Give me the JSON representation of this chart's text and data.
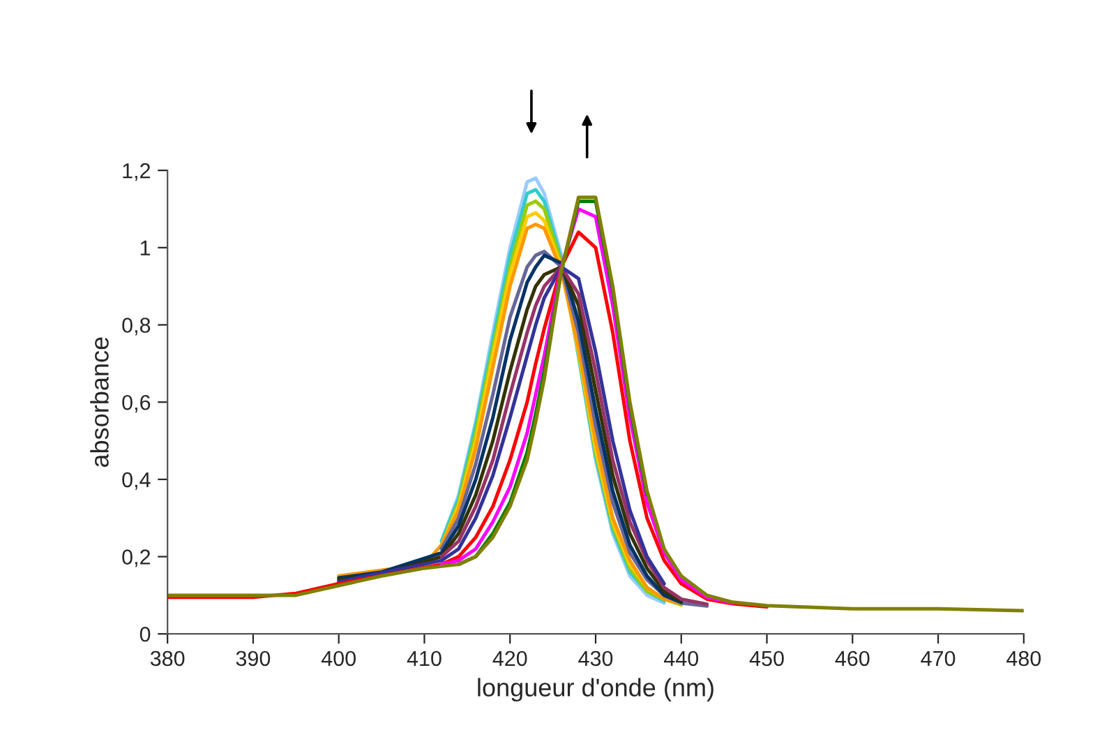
{
  "chart_data": {
    "type": "line",
    "xlabel": "longueur d'onde (nm)",
    "ylabel": "absorbance",
    "x": [
      380,
      390,
      395,
      400,
      405,
      410,
      412,
      414,
      416,
      418,
      420,
      422,
      423,
      424,
      426,
      428,
      430,
      432,
      434,
      436,
      438,
      440,
      443,
      446,
      450,
      460,
      470,
      480
    ],
    "xlim": [
      380,
      480
    ],
    "xticks": [
      380,
      390,
      400,
      410,
      420,
      430,
      440,
      450,
      460,
      470,
      480
    ],
    "ylim": [
      0,
      1.2
    ],
    "yticks": [
      0,
      {
        "value": 0.2,
        "label": "0,2"
      },
      {
        "value": 0.4,
        "label": "0,4"
      },
      {
        "value": 0.6,
        "label": "0,6"
      },
      {
        "value": 0.8,
        "label": "0,8"
      },
      1,
      {
        "value": 1.2,
        "label": "1,2"
      }
    ],
    "grid": false,
    "legend": false,
    "marker": "none",
    "line_style": "solid",
    "series": [
      {
        "color": "#99ccff",
        "values": [
          null,
          null,
          null,
          null,
          null,
          null,
          0.24,
          0.36,
          0.55,
          0.78,
          1.0,
          1.17,
          1.18,
          1.14,
          0.98,
          0.72,
          0.45,
          0.26,
          0.15,
          0.1,
          0.08,
          null,
          null,
          null,
          null,
          null,
          null,
          null
        ]
      },
      {
        "color": "#33cccc",
        "values": [
          null,
          null,
          null,
          null,
          null,
          null,
          0.24,
          0.35,
          0.54,
          0.76,
          0.98,
          1.14,
          1.15,
          1.12,
          0.97,
          0.72,
          0.46,
          0.27,
          0.16,
          0.11,
          0.085,
          null,
          null,
          null,
          null,
          null,
          null,
          null
        ]
      },
      {
        "color": "#99cc00",
        "values": [
          null,
          null,
          null,
          null,
          null,
          null,
          0.23,
          0.34,
          0.52,
          0.74,
          0.95,
          1.11,
          1.12,
          1.1,
          0.96,
          0.73,
          0.47,
          0.28,
          0.17,
          0.11,
          0.09,
          0.075,
          null,
          null,
          null,
          null,
          null,
          null
        ]
      },
      {
        "color": "#ffcc00",
        "values": [
          null,
          null,
          null,
          null,
          null,
          null,
          0.23,
          0.33,
          0.5,
          0.72,
          0.93,
          1.08,
          1.09,
          1.07,
          0.95,
          0.73,
          0.48,
          0.29,
          0.18,
          0.12,
          0.09,
          null,
          null,
          null,
          null,
          null,
          null,
          null
        ]
      },
      {
        "color": "#ff9900",
        "values": [
          null,
          null,
          null,
          0.15,
          null,
          0.18,
          0.23,
          0.32,
          0.48,
          0.69,
          0.9,
          1.05,
          1.06,
          1.05,
          0.94,
          0.74,
          0.5,
          0.3,
          0.19,
          0.12,
          0.09,
          0.078,
          null,
          null,
          null,
          null,
          null,
          null
        ]
      },
      {
        "color": "#666699",
        "values": [
          null,
          null,
          null,
          null,
          null,
          null,
          0.22,
          0.3,
          0.44,
          0.62,
          0.82,
          0.95,
          0.98,
          0.99,
          0.95,
          0.78,
          0.54,
          0.34,
          0.21,
          0.14,
          0.1,
          0.08,
          0.072,
          null,
          null,
          null,
          null,
          null
        ]
      },
      {
        "color": "#003366",
        "values": [
          null,
          null,
          null,
          0.145,
          0.16,
          null,
          0.21,
          0.28,
          0.4,
          0.56,
          0.76,
          0.91,
          0.95,
          0.98,
          0.96,
          0.81,
          0.58,
          0.37,
          0.23,
          0.15,
          0.1,
          0.082,
          null,
          null,
          null,
          null,
          null,
          null
        ]
      },
      {
        "color": "#333300",
        "values": [
          null,
          null,
          null,
          0.14,
          0.155,
          null,
          0.2,
          0.26,
          0.36,
          0.5,
          0.68,
          0.84,
          0.9,
          0.93,
          0.95,
          0.85,
          0.63,
          0.41,
          0.26,
          0.17,
          0.11,
          0.085,
          null,
          null,
          null,
          null,
          null,
          null
        ]
      },
      {
        "color": "#993366",
        "values": [
          null,
          null,
          null,
          null,
          null,
          null,
          0.2,
          0.24,
          0.33,
          0.45,
          0.62,
          0.78,
          0.85,
          0.9,
          0.95,
          0.88,
          0.68,
          0.45,
          0.29,
          0.19,
          0.12,
          0.09,
          0.077,
          null,
          null,
          null,
          null,
          null
        ]
      },
      {
        "color": "#333399",
        "values": [
          null,
          null,
          null,
          0.135,
          null,
          null,
          0.19,
          0.22,
          0.3,
          0.41,
          0.56,
          0.72,
          0.8,
          0.87,
          0.95,
          0.92,
          0.73,
          0.5,
          0.32,
          0.2,
          0.13,
          null,
          null,
          null,
          null,
          null,
          null,
          null
        ]
      },
      {
        "color": "#ff0000",
        "values": [
          0.095,
          0.095,
          0.105,
          0.13,
          null,
          null,
          0.18,
          0.2,
          0.25,
          0.33,
          0.45,
          0.6,
          0.7,
          0.79,
          0.95,
          1.04,
          1.0,
          0.78,
          0.5,
          0.3,
          0.19,
          0.13,
          0.09,
          0.078,
          0.07,
          null,
          null,
          null
        ]
      },
      {
        "color": "#ff00ff",
        "values": [
          null,
          null,
          null,
          null,
          null,
          null,
          0.18,
          0.19,
          0.22,
          0.29,
          0.38,
          0.52,
          0.62,
          0.72,
          0.95,
          1.1,
          1.08,
          0.85,
          0.56,
          0.34,
          0.21,
          0.14,
          0.095,
          0.08,
          null,
          null,
          null,
          null
        ]
      },
      {
        "color": "#008000",
        "values": [
          null,
          null,
          null,
          null,
          null,
          null,
          null,
          0.18,
          0.2,
          0.26,
          0.34,
          0.47,
          0.57,
          0.68,
          0.94,
          1.12,
          1.12,
          0.89,
          0.59,
          0.36,
          null,
          null,
          null,
          null,
          null,
          null,
          null,
          null
        ]
      },
      {
        "color": "#808000",
        "values": [
          0.1,
          0.1,
          0.1,
          0.125,
          0.15,
          0.17,
          0.175,
          0.18,
          0.2,
          0.25,
          0.33,
          0.45,
          0.55,
          0.66,
          0.94,
          1.13,
          1.13,
          0.9,
          0.6,
          0.37,
          0.22,
          0.15,
          0.1,
          0.082,
          0.073,
          0.065,
          0.065,
          0.06
        ]
      }
    ]
  }
}
